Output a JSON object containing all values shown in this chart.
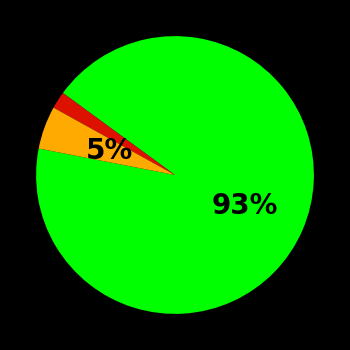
{
  "slices": [
    93,
    2,
    5
  ],
  "colors": [
    "#00ff00",
    "#dd1100",
    "#ffaa00"
  ],
  "labels": [
    "93%",
    "",
    "5%"
  ],
  "background_color": "#000000",
  "startangle": 169,
  "label_fontsize": 20,
  "label_fontweight": "bold",
  "label_color": "#000000"
}
